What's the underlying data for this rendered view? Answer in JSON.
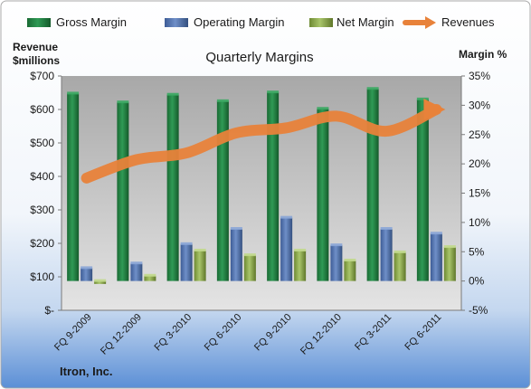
{
  "company": "Itron, Inc.",
  "chart_data": {
    "type": "bar",
    "title": "Quarterly Margins",
    "ylabel_left": [
      "Revenue",
      "$millions"
    ],
    "ylabel_right": "Margin %",
    "categories": [
      "FQ 9-2009",
      "FQ 12-2009",
      "FQ 3-2010",
      "FQ 6-2010",
      "FQ 9-2010",
      "FQ 12-2010",
      "FQ 3-2011",
      "FQ 6-2011"
    ],
    "left_axis": {
      "ylim": [
        0,
        700
      ],
      "ticks": [
        0,
        100,
        200,
        300,
        400,
        500,
        600,
        700
      ],
      "tick_labels": [
        "$-",
        "$100",
        "$200",
        "$300",
        "$400",
        "$500",
        "$600",
        "$700"
      ]
    },
    "right_axis": {
      "ylim": [
        -5,
        35
      ],
      "ticks": [
        -5,
        0,
        5,
        10,
        15,
        20,
        25,
        30,
        35
      ],
      "tick_labels": [
        "-5%",
        "0%",
        "5%",
        "10%",
        "15%",
        "20%",
        "25%",
        "30%",
        "35%"
      ]
    },
    "series": [
      {
        "name": "Gross Margin",
        "axis": "right",
        "kind": "bar",
        "color": "#1f7a3c",
        "values": [
          32.0,
          30.5,
          31.8,
          30.7,
          32.2,
          29.4,
          32.8,
          31.0
        ]
      },
      {
        "name": "Operating Margin",
        "axis": "right",
        "kind": "bar",
        "color": "#4f6fa8",
        "values": [
          2.2,
          3.0,
          6.3,
          8.9,
          10.8,
          6.1,
          8.9,
          8.1
        ]
      },
      {
        "name": "Net Margin",
        "axis": "right",
        "kind": "bar",
        "color": "#8aa64a",
        "values": [
          -0.5,
          0.9,
          5.2,
          4.4,
          5.2,
          3.5,
          4.9,
          5.8
        ]
      },
      {
        "name": "Revenues",
        "axis": "left",
        "kind": "line",
        "color": "#e8823a",
        "values": [
          395,
          450,
          470,
          530,
          545,
          580,
          535,
          600
        ]
      }
    ],
    "legend": "top",
    "grid": false
  }
}
